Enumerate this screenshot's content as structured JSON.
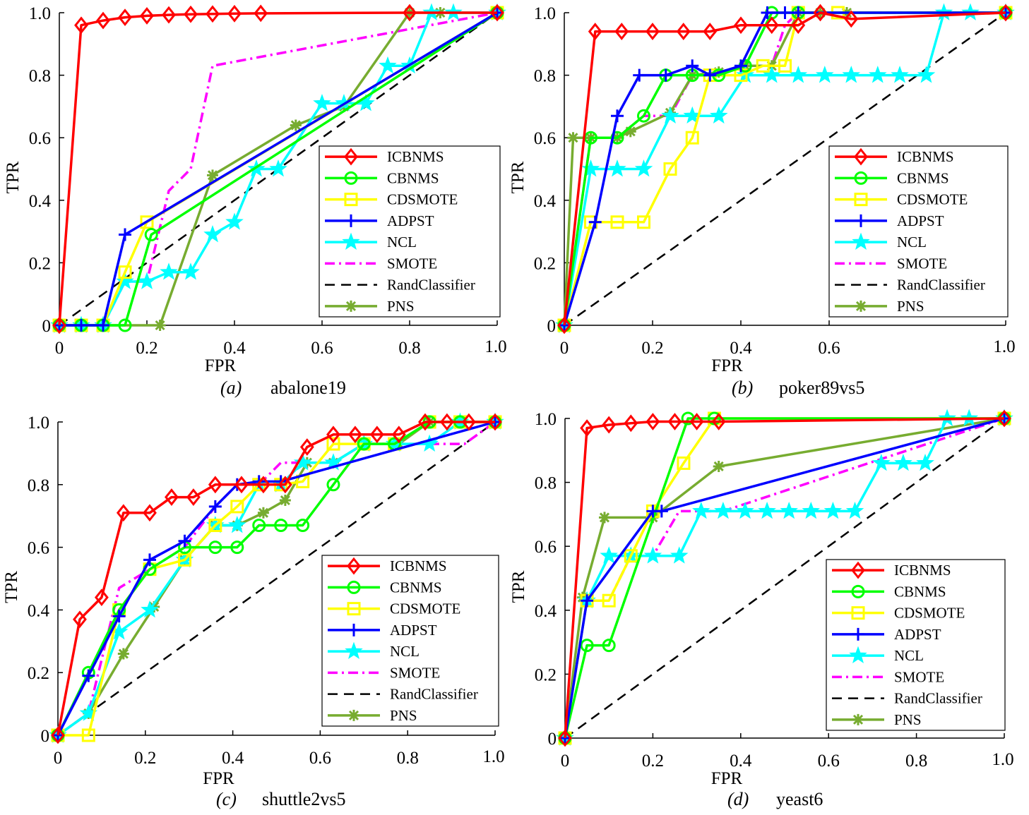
{
  "legend": {
    "series": [
      {
        "name": "ICBNMS",
        "color": "#ff0000",
        "marker": "diamond",
        "dash": "solid"
      },
      {
        "name": "CBNMS",
        "color": "#00ff00",
        "marker": "circle",
        "dash": "solid"
      },
      {
        "name": "CDSMOTE",
        "color": "#ffff00",
        "marker": "square",
        "dash": "solid"
      },
      {
        "name": "ADPST",
        "color": "#0000ff",
        "marker": "plus",
        "dash": "solid"
      },
      {
        "name": "NCL",
        "color": "#00ffff",
        "marker": "star",
        "dash": "solid"
      },
      {
        "name": "SMOTE",
        "color": "#ff00ff",
        "marker": "none",
        "dash": "dashdot"
      },
      {
        "name": "RandClassifier",
        "color": "#000000",
        "marker": "none",
        "dash": "dashed"
      },
      {
        "name": "PNS",
        "color": "#77ac30",
        "marker": "asterisk",
        "dash": "solid"
      }
    ]
  },
  "chart_data": [
    {
      "type": "line",
      "caption_index": "(a)",
      "caption_name": "abalone19",
      "xlabel": "FPR",
      "ylabel": "TPR",
      "xlim": [
        0,
        1
      ],
      "ylim": [
        0,
        1
      ],
      "x_ticks": [
        "0",
        "0.2",
        "0.4",
        "0.6",
        "0.8",
        "1.0"
      ],
      "y_ticks": [
        "0",
        "0.2",
        "0.4",
        "0.6",
        "0.8",
        "1.0"
      ],
      "grid": false,
      "legend_position": "lower-right",
      "series": [
        {
          "name": "ICBNMS",
          "x": [
            0,
            0.05,
            0.1,
            0.15,
            0.2,
            0.25,
            0.3,
            0.35,
            0.4,
            0.46,
            0.8,
            1.0
          ],
          "y": [
            0,
            0.96,
            0.975,
            0.985,
            0.99,
            0.993,
            0.995,
            0.996,
            0.997,
            0.998,
            1.0,
            1.0
          ]
        },
        {
          "name": "CBNMS",
          "x": [
            0,
            0.05,
            0.1,
            0.15,
            0.21,
            1.0
          ],
          "y": [
            0,
            0,
            0,
            0,
            0.29,
            1.0
          ]
        },
        {
          "name": "CDSMOTE",
          "x": [
            0,
            0.05,
            0.1,
            0.15,
            0.2,
            1.0
          ],
          "y": [
            0,
            0,
            0,
            0.17,
            0.33,
            1.0
          ]
        },
        {
          "name": "ADPST",
          "x": [
            0,
            0.05,
            0.1,
            0.15,
            1.0
          ],
          "y": [
            0,
            0,
            0,
            0.29,
            1.0
          ]
        },
        {
          "name": "NCL",
          "x": [
            0,
            0.05,
            0.1,
            0.15,
            0.2,
            0.25,
            0.3,
            0.35,
            0.4,
            0.45,
            0.5,
            0.6,
            0.65,
            0.7,
            0.75,
            0.8,
            0.85,
            0.9,
            1.0
          ],
          "y": [
            0,
            0,
            0,
            0.14,
            0.14,
            0.17,
            0.17,
            0.29,
            0.33,
            0.5,
            0.5,
            0.71,
            0.71,
            0.71,
            0.83,
            0.83,
            1.0,
            1.0,
            1.0
          ]
        },
        {
          "name": "SMOTE",
          "x": [
            0,
            0.1,
            0.15,
            0.2,
            0.25,
            0.3,
            0.35,
            1.0
          ],
          "y": [
            0,
            0,
            0.14,
            0.14,
            0.43,
            0.5,
            0.83,
            1.0
          ]
        },
        {
          "name": "RandClassifier",
          "x": [
            0,
            1.0
          ],
          "y": [
            0,
            1.0
          ]
        },
        {
          "name": "PNS",
          "x": [
            0,
            0.05,
            0.23,
            0.35,
            0.54,
            0.65,
            0.8,
            0.87,
            1.0
          ],
          "y": [
            0,
            0,
            0,
            0.48,
            0.64,
            0.7,
            1.0,
            1.0,
            1.0
          ]
        }
      ]
    },
    {
      "type": "line",
      "caption_index": "(b)",
      "caption_name": "poker89vs5",
      "xlabel": "FPR",
      "ylabel": "TPR",
      "xlim": [
        0,
        1
      ],
      "ylim": [
        0,
        1
      ],
      "x_ticks": [
        "0",
        "0.2",
        "0.4",
        "0.6",
        "1.0"
      ],
      "y_ticks": [
        "0",
        "0.2",
        "0.4",
        "0.6",
        "0.8",
        "1.0"
      ],
      "grid": false,
      "legend_position": "lower-right",
      "series": [
        {
          "name": "ICBNMS",
          "x": [
            0,
            0.07,
            0.13,
            0.2,
            0.27,
            0.33,
            0.4,
            0.47,
            0.53,
            0.58,
            0.65,
            1.0
          ],
          "y": [
            0,
            0.94,
            0.94,
            0.94,
            0.94,
            0.94,
            0.96,
            0.96,
            0.96,
            1.0,
            0.98,
            1.0
          ]
        },
        {
          "name": "CBNMS",
          "x": [
            0,
            0.06,
            0.12,
            0.18,
            0.23,
            0.29,
            0.35,
            0.41,
            0.47,
            0.53,
            1.0
          ],
          "y": [
            0,
            0.6,
            0.6,
            0.67,
            0.8,
            0.8,
            0.8,
            0.83,
            1.0,
            1.0,
            1.0
          ]
        },
        {
          "name": "CDSMOTE",
          "x": [
            0,
            0.06,
            0.12,
            0.18,
            0.24,
            0.29,
            0.33,
            0.4,
            0.45,
            0.5,
            0.53,
            0.62,
            1.0
          ],
          "y": [
            0,
            0.33,
            0.33,
            0.33,
            0.5,
            0.6,
            0.8,
            0.8,
            0.83,
            0.83,
            1.0,
            1.0,
            1.0
          ]
        },
        {
          "name": "ADPST",
          "x": [
            0,
            0.07,
            0.12,
            0.17,
            0.23,
            0.29,
            0.33,
            0.4,
            0.46,
            0.5,
            0.53,
            1.0
          ],
          "y": [
            0,
            0.33,
            0.67,
            0.8,
            0.8,
            0.83,
            0.8,
            0.83,
            1.0,
            1.0,
            1.0,
            1.0
          ]
        },
        {
          "name": "NCL",
          "x": [
            0,
            0.06,
            0.12,
            0.18,
            0.24,
            0.29,
            0.35,
            0.41,
            0.47,
            0.53,
            0.59,
            0.65,
            0.71,
            0.76,
            0.82,
            0.86,
            0.92,
            1.0
          ],
          "y": [
            0,
            0.5,
            0.5,
            0.5,
            0.67,
            0.67,
            0.67,
            0.8,
            0.8,
            0.8,
            0.8,
            0.8,
            0.8,
            0.8,
            0.8,
            1.0,
            1.0,
            1.0
          ]
        },
        {
          "name": "SMOTE",
          "x": [
            0,
            0.06,
            0.12,
            0.18,
            0.24,
            0.29,
            0.35,
            0.41,
            0.47,
            0.5,
            0.53,
            1.0
          ],
          "y": [
            0,
            0.6,
            0.6,
            0.67,
            0.67,
            0.8,
            0.8,
            0.83,
            0.83,
            0.96,
            1.0,
            1.0
          ]
        },
        {
          "name": "RandClassifier",
          "x": [
            0,
            1.0
          ],
          "y": [
            0,
            1.0
          ]
        },
        {
          "name": "PNS",
          "x": [
            0,
            0.02,
            0.06,
            0.12,
            0.15,
            0.24,
            0.29,
            0.35,
            0.41,
            0.47,
            0.53,
            0.58,
            0.64,
            1.0
          ],
          "y": [
            0,
            0.6,
            0.6,
            0.6,
            0.62,
            0.68,
            0.8,
            0.81,
            0.83,
            0.83,
            1.0,
            1.0,
            1.0,
            1.0
          ]
        }
      ]
    },
    {
      "type": "line",
      "caption_index": "(c)",
      "caption_name": "shuttle2vs5",
      "xlabel": "FPR",
      "ylabel": "TPR",
      "xlim": [
        0,
        1
      ],
      "ylim": [
        0,
        1
      ],
      "x_ticks": [
        "0",
        "0.2",
        "0.4",
        "0.6",
        "0.8",
        "1.0"
      ],
      "y_ticks": [
        "0",
        "0.2",
        "0.4",
        "0.6",
        "0.8",
        "1.0"
      ],
      "grid": false,
      "legend_position": "lower-right",
      "series": [
        {
          "name": "ICBNMS",
          "x": [
            0,
            0.05,
            0.1,
            0.15,
            0.21,
            0.26,
            0.31,
            0.36,
            0.42,
            0.47,
            0.52,
            0.57,
            0.63,
            0.68,
            0.73,
            0.78,
            0.84,
            0.89,
            0.94,
            1.0
          ],
          "y": [
            0,
            0.37,
            0.44,
            0.71,
            0.71,
            0.76,
            0.76,
            0.8,
            0.8,
            0.8,
            0.8,
            0.92,
            0.96,
            0.96,
            0.96,
            0.96,
            1.0,
            1.0,
            1.0,
            1.0
          ]
        },
        {
          "name": "CBNMS",
          "x": [
            0,
            0.07,
            0.14,
            0.21,
            0.29,
            0.36,
            0.41,
            0.46,
            0.51,
            0.56,
            0.63,
            0.7,
            0.77,
            0.85,
            0.92,
            1.0
          ],
          "y": [
            0,
            0.2,
            0.4,
            0.53,
            0.6,
            0.6,
            0.6,
            0.67,
            0.67,
            0.67,
            0.8,
            0.93,
            0.93,
            1.0,
            1.0,
            1.0
          ]
        },
        {
          "name": "CDSMOTE",
          "x": [
            0,
            0.07,
            0.14,
            0.21,
            0.29,
            0.36,
            0.41,
            0.46,
            0.51,
            0.56,
            0.63,
            0.7,
            0.77,
            0.85,
            0.92,
            1.0
          ],
          "y": [
            0,
            0,
            0.4,
            0.53,
            0.56,
            0.67,
            0.73,
            0.8,
            0.8,
            0.81,
            0.93,
            0.93,
            0.93,
            1.0,
            1.0,
            1.0
          ]
        },
        {
          "name": "ADPST",
          "x": [
            0,
            0.07,
            0.14,
            0.21,
            0.29,
            0.36,
            0.41,
            0.46,
            0.51,
            1.0
          ],
          "y": [
            0,
            0.19,
            0.38,
            0.56,
            0.62,
            0.73,
            0.8,
            0.81,
            0.81,
            1.0
          ]
        },
        {
          "name": "NCL",
          "x": [
            0,
            0.07,
            0.14,
            0.21,
            0.29,
            0.36,
            0.41,
            0.46,
            0.51,
            0.56,
            0.63,
            0.7,
            0.77,
            0.85,
            0.92,
            1.0
          ],
          "y": [
            0,
            0.07,
            0.33,
            0.4,
            0.56,
            0.67,
            0.67,
            0.8,
            0.8,
            0.87,
            0.87,
            0.93,
            0.93,
            0.93,
            1.0,
            1.0
          ]
        },
        {
          "name": "SMOTE",
          "x": [
            0,
            0.07,
            0.14,
            0.21,
            0.29,
            0.36,
            0.41,
            0.46,
            0.51,
            0.56,
            0.63,
            0.7,
            0.77,
            0.85,
            0.93,
            1.0
          ],
          "y": [
            0,
            0.07,
            0.47,
            0.53,
            0.6,
            0.73,
            0.8,
            0.8,
            0.87,
            0.87,
            0.87,
            0.93,
            0.93,
            0.93,
            0.93,
            1.0
          ]
        },
        {
          "name": "RandClassifier",
          "x": [
            0,
            1.0
          ],
          "y": [
            0,
            1.0
          ]
        },
        {
          "name": "PNS",
          "x": [
            0,
            0.07,
            0.15,
            0.22,
            0.29,
            0.36,
            0.41,
            0.47,
            0.52,
            0.57,
            0.63,
            0.7,
            0.78,
            0.85,
            0.92,
            1.0
          ],
          "y": [
            0,
            0.07,
            0.26,
            0.41,
            0.56,
            0.67,
            0.67,
            0.71,
            0.75,
            0.87,
            0.87,
            0.93,
            0.93,
            1.0,
            1.0,
            1.0
          ]
        }
      ]
    },
    {
      "type": "line",
      "caption_index": "(d)",
      "caption_name": "yeast6",
      "xlabel": "FPR",
      "ylabel": "TPR",
      "xlim": [
        0,
        1
      ],
      "ylim": [
        0,
        1
      ],
      "x_ticks": [
        "0",
        "0.2",
        "0.4",
        "0.6",
        "0.8",
        "1.0"
      ],
      "y_ticks": [
        "0",
        "0.2",
        "0.4",
        "0.6",
        "0.8",
        "1.0"
      ],
      "grid": false,
      "legend_position": "lower-right",
      "series": [
        {
          "name": "ICBNMS",
          "x": [
            0,
            0.05,
            0.1,
            0.15,
            0.2,
            0.25,
            0.3,
            0.35,
            1.0
          ],
          "y": [
            0,
            0.97,
            0.98,
            0.985,
            0.99,
            0.99,
            0.99,
            0.99,
            1.0
          ]
        },
        {
          "name": "CBNMS",
          "x": [
            0,
            0.05,
            0.1,
            0.28,
            0.34,
            1.0
          ],
          "y": [
            0,
            0.29,
            0.29,
            1.0,
            1.0,
            1.0
          ]
        },
        {
          "name": "CDSMOTE",
          "x": [
            0,
            0.05,
            0.1,
            0.15,
            0.2,
            0.27,
            0.34,
            1.0
          ],
          "y": [
            0,
            0.43,
            0.43,
            0.57,
            0.71,
            0.86,
            1.0,
            1.0
          ]
        },
        {
          "name": "ADPST",
          "x": [
            0,
            0.05,
            0.2,
            0.22,
            1.0
          ],
          "y": [
            0,
            0.43,
            0.71,
            0.71,
            1.0
          ]
        },
        {
          "name": "NCL",
          "x": [
            0,
            0.05,
            0.1,
            0.15,
            0.2,
            0.26,
            0.31,
            0.36,
            0.41,
            0.46,
            0.51,
            0.56,
            0.61,
            0.66,
            0.72,
            0.77,
            0.82,
            0.87,
            0.92,
            1.0
          ],
          "y": [
            0,
            0.43,
            0.57,
            0.57,
            0.57,
            0.57,
            0.71,
            0.71,
            0.71,
            0.71,
            0.71,
            0.71,
            0.71,
            0.71,
            0.86,
            0.86,
            0.86,
            1.0,
            1.0,
            1.0
          ]
        },
        {
          "name": "SMOTE",
          "x": [
            0,
            0.05,
            0.1,
            0.15,
            0.2,
            0.26,
            0.36,
            1.0
          ],
          "y": [
            0,
            0.43,
            0.43,
            0.57,
            0.57,
            0.71,
            0.71,
            1.0
          ]
        },
        {
          "name": "RandClassifier",
          "x": [
            0,
            1.0
          ],
          "y": [
            0,
            1.0
          ]
        },
        {
          "name": "PNS",
          "x": [
            0,
            0.04,
            0.09,
            0.2,
            0.35,
            1.0
          ],
          "y": [
            0,
            0.44,
            0.69,
            0.69,
            0.85,
            1.0
          ]
        }
      ]
    }
  ]
}
